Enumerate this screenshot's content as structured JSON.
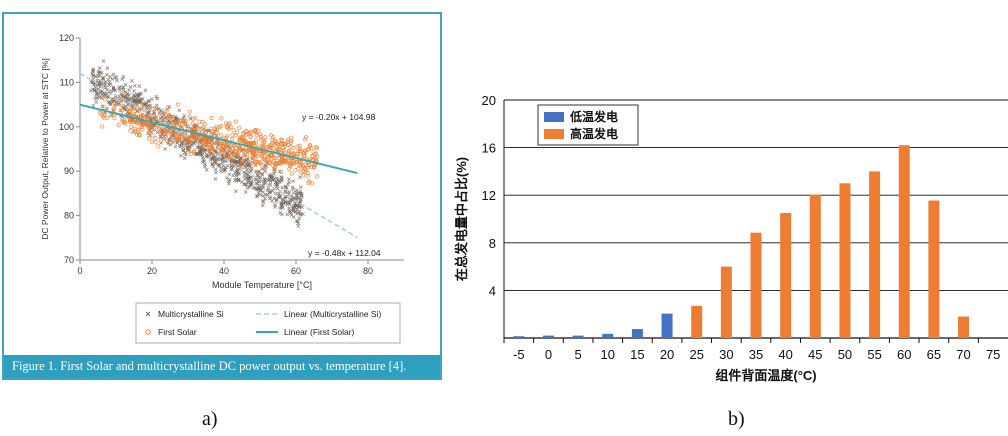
{
  "chart_data": [
    {
      "type": "scatter",
      "title": "",
      "xlabel": "Module Temperature [°C]",
      "ylabel": "DC Power Output, Relative to Power at STC [%]",
      "xlim": [
        0,
        90
      ],
      "ylim": [
        70,
        120
      ],
      "xticks": [
        "0",
        "20",
        "40",
        "60",
        "80"
      ],
      "yticks": [
        "70",
        "80",
        "90",
        "100",
        "110",
        "120"
      ],
      "series": [
        {
          "name": "Multicrystalline Si",
          "marker": "x",
          "color": "#6e6459",
          "fit_slope": -0.48,
          "fit_intercept": 112.04,
          "x_range": [
            3,
            62
          ],
          "spread": 3.2
        },
        {
          "name": "First Solar",
          "marker": "o",
          "color": "#f07b2a",
          "fit_slope": -0.2,
          "fit_intercept": 104.98,
          "x_range": [
            5,
            66
          ],
          "spread": 3.0
        }
      ],
      "fit_lines": [
        {
          "name": "Linear (Multicrystalline Si)",
          "slope": -0.48,
          "intercept": 112.04,
          "x_range": [
            0,
            77
          ],
          "style": "dashed",
          "color": "#a9cfe3"
        },
        {
          "name": "Linear (First Solar)",
          "slope": -0.2,
          "intercept": 104.98,
          "x_range": [
            0,
            77
          ],
          "style": "solid",
          "color": "#3aa7b3"
        }
      ],
      "annotations": [
        "y = -0.20x + 104.98",
        "y = -0.48x + 112.04"
      ],
      "caption": "Figure 1. First Solar and multicrystalline DC power output vs. temperature [4].",
      "legend_position": "bottom",
      "panel_label": "a)"
    },
    {
      "type": "bar",
      "title": "",
      "xlabel": "组件背面温度(°C)",
      "ylabel": "在总发电量中占比(%)",
      "ylim": [
        0,
        20
      ],
      "yticks": [
        "4",
        "8",
        "12",
        "16",
        "20"
      ],
      "categories": [
        "-5",
        "0",
        "5",
        "10",
        "15",
        "20",
        "25",
        "30",
        "35",
        "40",
        "45",
        "50",
        "55",
        "60",
        "65",
        "70",
        "75"
      ],
      "series": [
        {
          "name": "低温发电",
          "color": "#4472c4",
          "values": [
            0.15,
            0.2,
            0.2,
            0.35,
            0.75,
            2.05,
            null,
            null,
            null,
            null,
            null,
            null,
            null,
            null,
            null,
            null,
            null
          ]
        },
        {
          "name": "高温发电",
          "color": "#ed7d31",
          "values": [
            null,
            null,
            null,
            null,
            null,
            null,
            2.7,
            6.0,
            8.85,
            10.5,
            12.05,
            13.0,
            14.0,
            16.2,
            11.55,
            1.8,
            null
          ]
        }
      ],
      "grid": true,
      "legend_position": "top-left",
      "panel_label": "b)"
    }
  ]
}
